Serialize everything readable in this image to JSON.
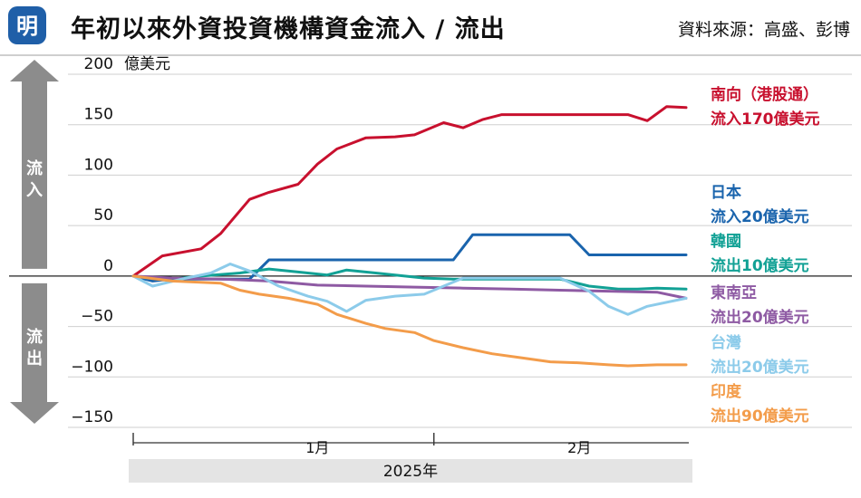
{
  "header": {
    "logo_text": "明",
    "title": "年初以來外資投資機構資金流入 / 流出",
    "source": "資料來源：高盛、彭博"
  },
  "colors": {
    "brand_blue": "#1f5fa8",
    "arrow_gray": "#8c8c8c",
    "grid": "#cfcfcf",
    "axis": "#333333"
  },
  "arrows": {
    "inflow_label": [
      "流",
      "入"
    ],
    "outflow_label": [
      "流",
      "出"
    ]
  },
  "chart_data": {
    "type": "line",
    "title": "",
    "y_unit_label": "億美元",
    "xlabel": "2025年",
    "ylabel": "",
    "ylim": [
      -150,
      200
    ],
    "y_ticks": [
      200,
      150,
      100,
      50,
      0,
      -50,
      -100,
      -150
    ],
    "y_tick_labels": [
      "200",
      "150",
      "100",
      "50",
      "0",
      "−50",
      "−100",
      "−150"
    ],
    "x_range": [
      "2025-01-01",
      "2025-02-27"
    ],
    "x_month_labels": [
      {
        "date": "2025-01-20",
        "label": "1月"
      },
      {
        "date": "2025-02-16",
        "label": "2月"
      }
    ],
    "x_month_separators": [
      "2025-01-01",
      "2025-02-01"
    ],
    "legend_position": "right",
    "grid": true,
    "series": [
      {
        "name": "南向（港股通）",
        "label_lines": [
          "南向（港股通）",
          "流入170億美元"
        ],
        "color": "#c8102e",
        "points": [
          [
            "2025-01-01",
            0
          ],
          [
            "2025-01-04",
            20
          ],
          [
            "2025-01-08",
            27
          ],
          [
            "2025-01-10",
            42
          ],
          [
            "2025-01-13",
            76
          ],
          [
            "2025-01-15",
            83
          ],
          [
            "2025-01-18",
            91
          ],
          [
            "2025-01-20",
            111
          ],
          [
            "2025-01-22",
            126
          ],
          [
            "2025-01-25",
            137
          ],
          [
            "2025-01-28",
            138
          ],
          [
            "2025-01-30",
            140
          ],
          [
            "2025-02-02",
            152
          ],
          [
            "2025-02-04",
            147
          ],
          [
            "2025-02-06",
            155
          ],
          [
            "2025-02-08",
            160
          ],
          [
            "2025-02-12",
            160
          ],
          [
            "2025-02-16",
            160
          ],
          [
            "2025-02-21",
            160
          ],
          [
            "2025-02-23",
            154
          ],
          [
            "2025-02-25",
            168
          ],
          [
            "2025-02-27",
            167
          ]
        ]
      },
      {
        "name": "日本",
        "label_lines": [
          "日本",
          "流入20億美元"
        ],
        "color": "#1a64ad",
        "points": [
          [
            "2025-01-01",
            0
          ],
          [
            "2025-01-03",
            -5
          ],
          [
            "2025-01-05",
            -3
          ],
          [
            "2025-01-08",
            -3
          ],
          [
            "2025-01-13",
            -3
          ],
          [
            "2025-01-15",
            16
          ],
          [
            "2025-01-20",
            16
          ],
          [
            "2025-01-25",
            16
          ],
          [
            "2025-01-30",
            16
          ],
          [
            "2025-02-03",
            16
          ],
          [
            "2025-02-05",
            41
          ],
          [
            "2025-02-10",
            41
          ],
          [
            "2025-02-15",
            41
          ],
          [
            "2025-02-17",
            21
          ],
          [
            "2025-02-22",
            21
          ],
          [
            "2025-02-27",
            21
          ]
        ]
      },
      {
        "name": "韓國",
        "label_lines": [
          "韓國",
          "流出10億美元"
        ],
        "color": "#12a195",
        "points": [
          [
            "2025-01-01",
            0
          ],
          [
            "2025-01-05",
            -3
          ],
          [
            "2025-01-08",
            0
          ],
          [
            "2025-01-12",
            3
          ],
          [
            "2025-01-15",
            7
          ],
          [
            "2025-01-18",
            4
          ],
          [
            "2025-01-21",
            1
          ],
          [
            "2025-01-23",
            6
          ],
          [
            "2025-01-26",
            3
          ],
          [
            "2025-01-29",
            0
          ],
          [
            "2025-01-31",
            -2
          ],
          [
            "2025-02-03",
            -3
          ],
          [
            "2025-02-06",
            -3
          ],
          [
            "2025-02-09",
            -3
          ],
          [
            "2025-02-11",
            -3
          ],
          [
            "2025-02-14",
            -3
          ],
          [
            "2025-02-17",
            -10
          ],
          [
            "2025-02-20",
            -13
          ],
          [
            "2025-02-22",
            -13
          ],
          [
            "2025-02-24",
            -12
          ],
          [
            "2025-02-27",
            -13
          ]
        ]
      },
      {
        "name": "東南亞",
        "label_lines": [
          "東南亞",
          "流出20億美元"
        ],
        "color": "#8e5aa3",
        "points": [
          [
            "2025-01-01",
            0
          ],
          [
            "2025-01-05",
            -2
          ],
          [
            "2025-01-10",
            -3
          ],
          [
            "2025-01-15",
            -5
          ],
          [
            "2025-01-20",
            -9
          ],
          [
            "2025-01-25",
            -10
          ],
          [
            "2025-01-30",
            -11
          ],
          [
            "2025-02-04",
            -12
          ],
          [
            "2025-02-09",
            -13
          ],
          [
            "2025-02-14",
            -14
          ],
          [
            "2025-02-19",
            -15
          ],
          [
            "2025-02-24",
            -16
          ],
          [
            "2025-02-27",
            -22
          ]
        ]
      },
      {
        "name": "台灣",
        "label_lines": [
          "台灣",
          "流出20億美元"
        ],
        "color": "#8ccbea",
        "points": [
          [
            "2025-01-01",
            0
          ],
          [
            "2025-01-03",
            -10
          ],
          [
            "2025-01-06",
            -3
          ],
          [
            "2025-01-09",
            3
          ],
          [
            "2025-01-11",
            12
          ],
          [
            "2025-01-13",
            5
          ],
          [
            "2025-01-16",
            -10
          ],
          [
            "2025-01-19",
            -20
          ],
          [
            "2025-01-21",
            -25
          ],
          [
            "2025-01-23",
            -35
          ],
          [
            "2025-01-25",
            -24
          ],
          [
            "2025-01-28",
            -20
          ],
          [
            "2025-01-31",
            -18
          ],
          [
            "2025-02-02",
            -10
          ],
          [
            "2025-02-04",
            -2
          ],
          [
            "2025-02-07",
            -2
          ],
          [
            "2025-02-10",
            -2
          ],
          [
            "2025-02-14",
            -2
          ],
          [
            "2025-02-17",
            -15
          ],
          [
            "2025-02-19",
            -30
          ],
          [
            "2025-02-21",
            -38
          ],
          [
            "2025-02-23",
            -30
          ],
          [
            "2025-02-27",
            -22
          ]
        ]
      },
      {
        "name": "印度",
        "label_lines": [
          "印度",
          "流出90億美元"
        ],
        "color": "#f39c4a",
        "points": [
          [
            "2025-01-01",
            0
          ],
          [
            "2025-01-05",
            -5
          ],
          [
            "2025-01-10",
            -7
          ],
          [
            "2025-01-12",
            -14
          ],
          [
            "2025-01-14",
            -18
          ],
          [
            "2025-01-17",
            -22
          ],
          [
            "2025-01-20",
            -28
          ],
          [
            "2025-01-22",
            -38
          ],
          [
            "2025-01-25",
            -47
          ],
          [
            "2025-01-27",
            -52
          ],
          [
            "2025-01-30",
            -56
          ],
          [
            "2025-02-01",
            -64
          ],
          [
            "2025-02-04",
            -71
          ],
          [
            "2025-02-07",
            -77
          ],
          [
            "2025-02-10",
            -81
          ],
          [
            "2025-02-13",
            -85
          ],
          [
            "2025-02-16",
            -86
          ],
          [
            "2025-02-19",
            -88
          ],
          [
            "2025-02-21",
            -89
          ],
          [
            "2025-02-24",
            -88
          ],
          [
            "2025-02-27",
            -88
          ]
        ]
      }
    ]
  }
}
